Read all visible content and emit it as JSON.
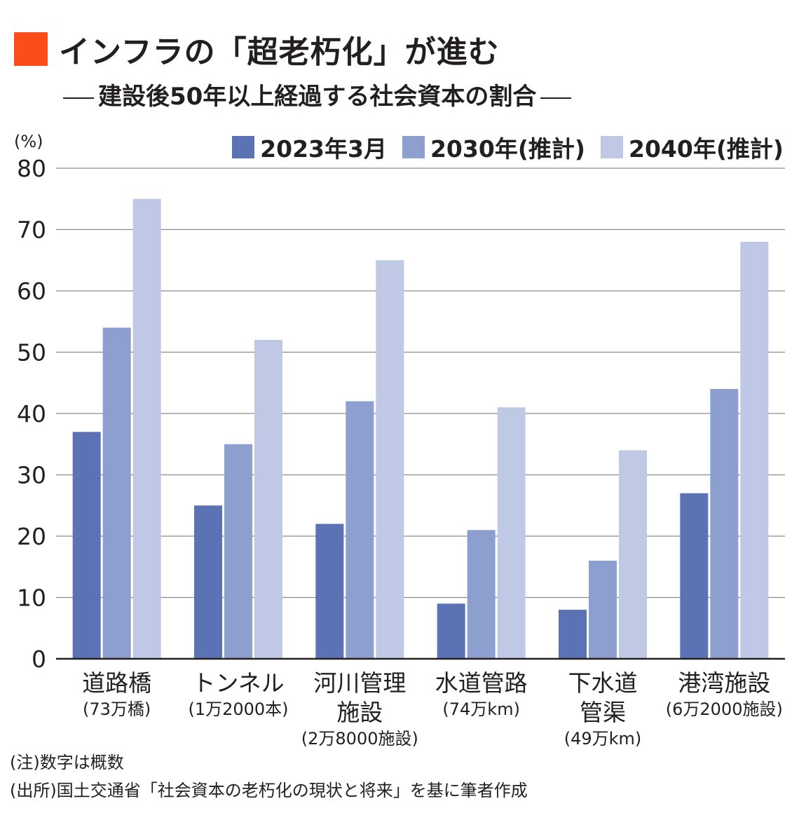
{
  "title": "インフラの「超老朽化」が進む",
  "subtitle": "建設後50年以上経過する社会資本の割合",
  "colors": {
    "accent": "#fb4d1a",
    "series": [
      "#5b73b5",
      "#8d9fcf",
      "#bfc8e4"
    ],
    "grid": "#8c8c8c"
  },
  "chart_data": {
    "type": "bar",
    "unit_label": "(%)",
    "ylim": [
      0,
      80
    ],
    "yticks": [
      0,
      10,
      20,
      30,
      40,
      50,
      60,
      70,
      80
    ],
    "grid": true,
    "legend_position": "top-right",
    "categories": [
      {
        "name": [
          "道路橋"
        ],
        "note": [
          "(73万橋)"
        ]
      },
      {
        "name": [
          "トンネル"
        ],
        "note": [
          "(1万2000本)"
        ]
      },
      {
        "name": [
          "河川管理",
          "施設"
        ],
        "note": [
          "(2万8000施設)"
        ]
      },
      {
        "name": [
          "水道管路"
        ],
        "note": [
          "(74万km)"
        ]
      },
      {
        "name": [
          "下水道",
          "管渠"
        ],
        "note": [
          "(49万km)"
        ]
      },
      {
        "name": [
          "港湾施設"
        ],
        "note": [
          "(6万2000施設)"
        ]
      }
    ],
    "series": [
      {
        "name": "2023年3月",
        "values": [
          37,
          25,
          22,
          9,
          8,
          27
        ]
      },
      {
        "name": "2030年(推計)",
        "values": [
          54,
          35,
          42,
          21,
          16,
          44
        ]
      },
      {
        "name": "2040年(推計)",
        "values": [
          75,
          52,
          65,
          41,
          34,
          68
        ]
      }
    ]
  },
  "notes": [
    "(注)数字は概数",
    "(出所)国土交通省「社会資本の老朽化の現状と将来」を基に筆者作成"
  ]
}
